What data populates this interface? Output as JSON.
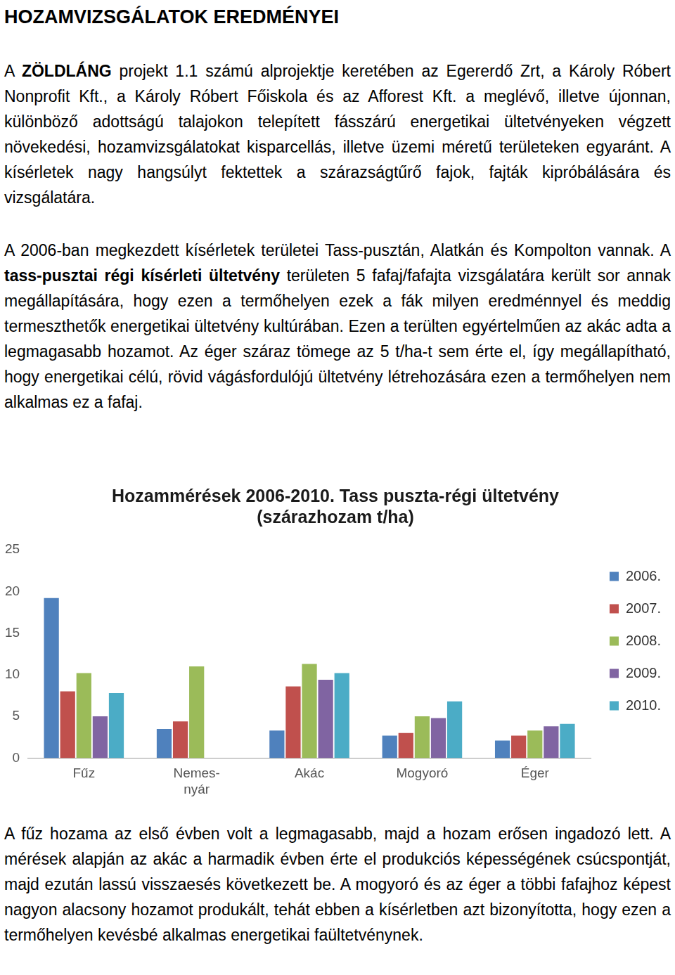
{
  "heading": "HOZAMVIZSGÁLATOK EREDMÉNYEI",
  "paragraphs": [
    [
      "A ",
      {
        "bold": "ZÖLDLÁNG"
      },
      " projekt 1.1 számú alprojektje keretében az Egererdő Zrt, a Károly Róbert Nonprofit Kft., a Károly Róbert Főiskola és az Afforest Kft. a meglévő, illetve újonnan, különböző adottságú talajokon telepített fásszárú energetikai ültetvényeken végzett növekedési, hozamvizsgálatokat kisparcellás, illetve üzemi méretű területeken egyaránt. A kísérletek nagy hangsúlyt fektettek a szárazságtűrő fajok, fajták kipróbálására és vizsgálatára."
    ],
    [
      "A 2006-ban megkezdett kísérletek területei Tass-pusztán, Alatkán és Kompolton vannak. A ",
      {
        "bold": "tass-pusztai régi kísérleti ültetvény"
      },
      " területen 5 fafaj/fafajta vizsgálatára került sor annak megállapítására, hogy ezen a termőhelyen ezek a fák milyen eredménnyel és meddig termeszthetők energetikai ültetvény kultúrában. Ezen a terülten egyértelműen az akác adta a legmagasabb hozamot. Az éger száraz tömege az 5 t/ha-t sem érte el, így megállapítható, hogy energetikai célú, rövid vágásfordulójú ültetvény létrehozására ezen a termőhelyen nem alkalmas ez a fafaj."
    ],
    [
      "A fűz hozama az első évben volt a legmagasabb, majd a hozam erősen ingadozó lett. A mérések alapján az akác a harmadik évben érte el produkciós képességének csúcspontját, majd ezután lassú visszaesés következett be. A mogyoró és az éger a többi fafajhoz képest nagyon alacsony hozamot produkált, tehát ebben a kísérletben azt bizonyította, hogy ezen a termőhelyen kevésbé alkalmas energetikai faültetvénynek."
    ]
  ],
  "chart_data": {
    "type": "bar",
    "title": [
      "Hozammérések 2006-2010. Tass puszta-régi ültetvény",
      "(szárazhozam t/ha)"
    ],
    "categories": [
      "Fűz",
      "Nemes-\nnyár",
      "Akác",
      "Mogyoró",
      "Éger"
    ],
    "series": [
      {
        "name": "2006.",
        "color": "#4f81bd",
        "values": [
          19.2,
          3.5,
          3.3,
          2.7,
          2.1
        ]
      },
      {
        "name": "2007.",
        "color": "#c0504d",
        "values": [
          8.0,
          4.4,
          8.6,
          3.0,
          2.7
        ]
      },
      {
        "name": "2008.",
        "color": "#9bbb59",
        "values": [
          10.2,
          11.0,
          11.3,
          5.0,
          3.3
        ]
      },
      {
        "name": "2009.",
        "color": "#8064a2",
        "values": [
          5.0,
          null,
          9.4,
          4.8,
          3.8
        ]
      },
      {
        "name": "2010.",
        "color": "#4bacc6",
        "values": [
          7.8,
          null,
          10.2,
          6.8,
          4.1
        ]
      }
    ],
    "ylim": [
      0,
      25
    ],
    "yticks": [
      0,
      5,
      10,
      15,
      20,
      25
    ],
    "grid": false,
    "legend": "right"
  }
}
